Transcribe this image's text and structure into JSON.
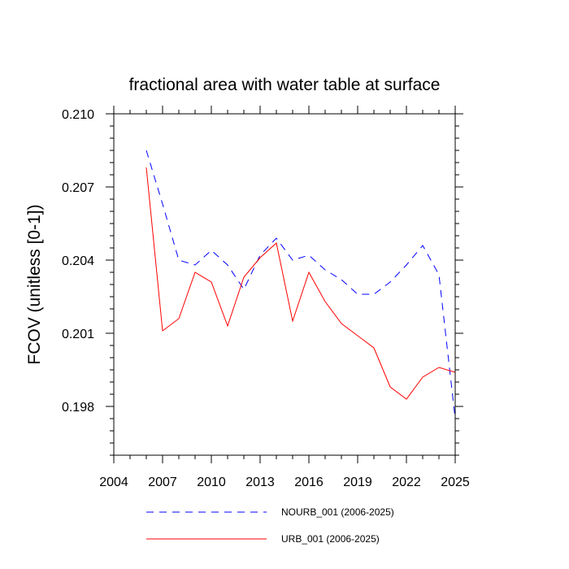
{
  "chart_data": {
    "type": "line",
    "title": "fractional area with water table at surface",
    "ylabel": "FCOV  (unitless [0-1])",
    "xlabel": "",
    "xlim": [
      2004,
      2025
    ],
    "ylim": [
      0.196,
      0.21
    ],
    "xticks": [
      2004,
      2007,
      2010,
      2013,
      2016,
      2019,
      2022,
      2025
    ],
    "yticks": [
      0.198,
      0.201,
      0.204,
      0.207,
      0.21
    ],
    "xtick_labels": [
      "2004",
      "2007",
      "2010",
      "2013",
      "2016",
      "2019",
      "2022",
      "2025"
    ],
    "ytick_labels": [
      "0.198",
      "0.201",
      "0.204",
      "0.207",
      "0.210"
    ],
    "x": [
      2006,
      2007,
      2008,
      2009,
      2010,
      2011,
      2012,
      2013,
      2014,
      2015,
      2016,
      2017,
      2018,
      2019,
      2020,
      2021,
      2022,
      2023,
      2024,
      2025
    ],
    "series": [
      {
        "name": "NOURB_001 (2006-2025)",
        "color": "#0000ff",
        "style": "dashed",
        "values": [
          0.2085,
          0.2063,
          0.204,
          0.2038,
          0.2044,
          0.2038,
          0.2028,
          0.2042,
          0.2049,
          0.204,
          0.2042,
          0.2036,
          0.2032,
          0.2026,
          0.2026,
          0.2031,
          0.2038,
          0.2046,
          0.2034,
          0.1975
        ]
      },
      {
        "name": "URB_001 (2006-2025)",
        "color": "#ff0000",
        "style": "solid",
        "values": [
          0.2078,
          0.2011,
          0.2016,
          0.2035,
          0.2031,
          0.2013,
          0.2033,
          0.2041,
          0.2047,
          0.2015,
          0.2035,
          0.2023,
          0.2014,
          0.2009,
          0.2004,
          0.1988,
          0.1983,
          0.1992,
          0.1996,
          0.1994
        ]
      }
    ]
  }
}
